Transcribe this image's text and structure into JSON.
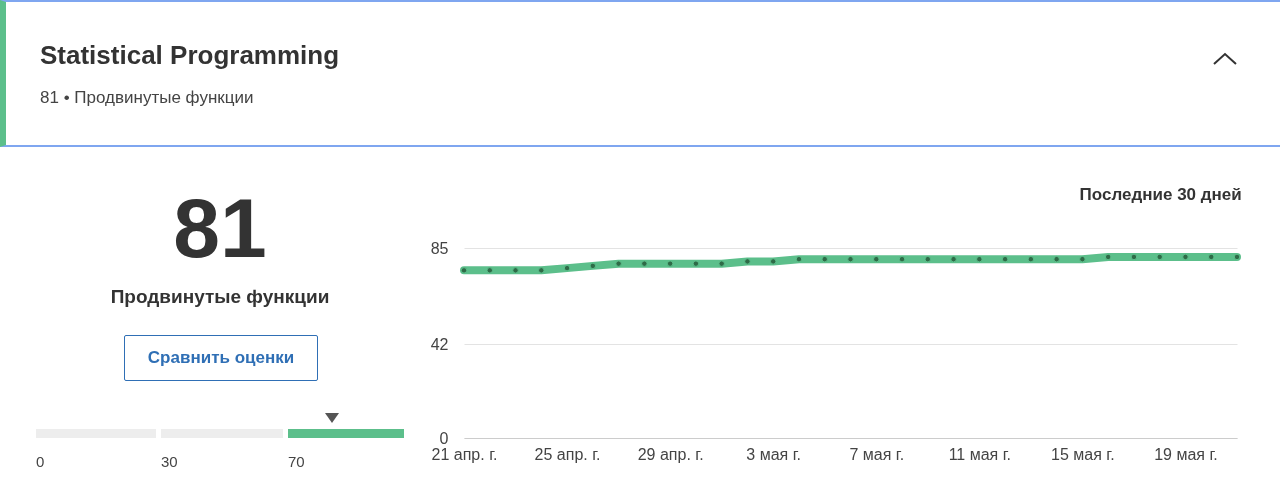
{
  "chart_data": [
    {
      "type": "other",
      "title": "Statistical Programming",
      "subtitle": "81 • Продвинутые функции",
      "annotations": [
        "81",
        "Продвинутые функции",
        "Сравнить оценки",
        "0",
        "30",
        "70"
      ]
    },
    {
      "type": "line",
      "title": "Последние 30 дней",
      "x": [
        "--04-21",
        "--04-22",
        "--04-23",
        "--04-24",
        "--04-25",
        "--04-26",
        "--04-27",
        "--04-28",
        "--04-29",
        "--04-30",
        "--05-01",
        "--05-02",
        "--05-03",
        "--05-04",
        "--05-05",
        "--05-06",
        "--05-07",
        "--05-08",
        "--05-09",
        "--05-10",
        "--05-11",
        "--05-12",
        "--05-13",
        "--05-14",
        "--05-15",
        "--05-16",
        "--05-17",
        "--05-18",
        "--05-19",
        "--05-20",
        "--05-21"
      ],
      "series": [
        {
          "color": "#5cbf8b",
          "values": [
            75,
            75,
            75,
            75,
            76,
            77,
            78,
            78,
            78,
            78,
            78,
            79,
            79,
            80,
            80,
            80,
            80,
            80,
            80,
            80,
            80,
            80,
            80,
            80,
            80,
            81,
            81,
            81,
            81,
            81,
            81
          ]
        }
      ],
      "xlim": [
        "--04-21",
        "--05-21"
      ],
      "ylim": [
        0,
        85
      ],
      "yticks": [
        0,
        42,
        85
      ],
      "xticks": [
        {
          "value": "--04-21",
          "label": "21 апр. г."
        },
        {
          "value": "--04-25",
          "label": "25 апр. г."
        },
        {
          "value": "--04-29",
          "label": "29 апр. г."
        },
        {
          "value": "--05-03",
          "label": "3 мая г."
        },
        {
          "value": "--05-07",
          "label": "7 мая г."
        },
        {
          "value": "--05-11",
          "label": "11 мая г."
        },
        {
          "value": "--05-15",
          "label": "15 мая г."
        },
        {
          "value": "--05-19",
          "label": "19 мая г."
        }
      ],
      "grid": "y",
      "marker": "circle",
      "legend": false
    }
  ]
}
